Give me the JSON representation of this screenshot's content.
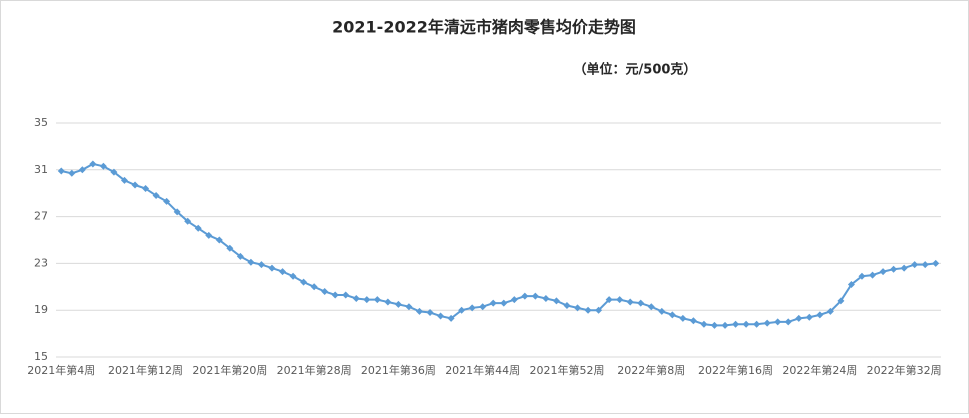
{
  "chart_data": {
    "type": "line",
    "title": "2021-2022年清远市猪肉零售均价走势图",
    "subtitle": "（单位：元/500克）",
    "categories": [
      "2021年第4周",
      null,
      null,
      null,
      null,
      null,
      null,
      null,
      "2021年第12周",
      null,
      null,
      null,
      null,
      null,
      null,
      null,
      "2021年第20周",
      null,
      null,
      null,
      null,
      null,
      null,
      null,
      "2021年第28周",
      null,
      null,
      null,
      null,
      null,
      null,
      null,
      "2021年第36周",
      null,
      null,
      null,
      null,
      null,
      null,
      null,
      "2021年第44周",
      null,
      null,
      null,
      null,
      null,
      null,
      null,
      "2021年第52周",
      null,
      null,
      null,
      null,
      null,
      null,
      null,
      "2022年第8周",
      null,
      null,
      null,
      null,
      null,
      null,
      null,
      "2022年第16周",
      null,
      null,
      null,
      null,
      null,
      null,
      null,
      "2022年第24周",
      null,
      null,
      null,
      null,
      null,
      null,
      null,
      "2022年第32周",
      null,
      null,
      null
    ],
    "series": [
      {
        "name": "猪肉零售均价",
        "color": "#5b9bd5",
        "values": [
          30.9,
          30.7,
          31.0,
          31.5,
          31.3,
          30.8,
          30.1,
          29.7,
          29.4,
          28.8,
          28.3,
          27.4,
          26.6,
          26.0,
          25.4,
          25.0,
          24.3,
          23.6,
          23.1,
          22.9,
          22.6,
          22.3,
          21.9,
          21.4,
          21.0,
          20.6,
          20.3,
          20.3,
          20.0,
          19.9,
          19.9,
          19.7,
          19.5,
          19.3,
          18.9,
          18.8,
          18.5,
          18.3,
          19.0,
          19.2,
          19.3,
          19.6,
          19.6,
          19.9,
          20.2,
          20.2,
          20.0,
          19.8,
          19.4,
          19.2,
          19.0,
          19.0,
          19.9,
          19.9,
          19.7,
          19.6,
          19.3,
          18.9,
          18.6,
          18.3,
          18.1,
          17.8,
          17.7,
          17.7,
          17.8,
          17.8,
          17.8,
          17.9,
          18.0,
          18.0,
          18.3,
          18.4,
          18.6,
          18.9,
          19.8,
          21.2,
          21.9,
          22.0,
          22.3,
          22.5,
          22.6,
          22.9,
          22.9,
          23.0
        ]
      }
    ],
    "ylim": [
      15,
      35
    ],
    "yticks": [
      15,
      19,
      23,
      27,
      31,
      35
    ],
    "grid": true
  }
}
